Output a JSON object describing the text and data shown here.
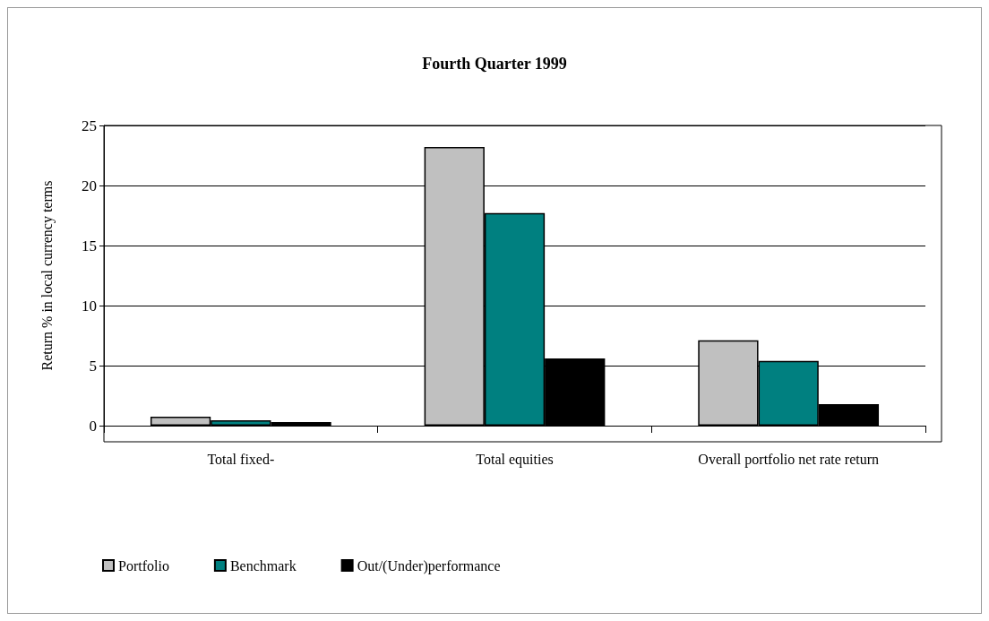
{
  "chart_data": {
    "type": "bar",
    "title": "Fourth Quarter 1999",
    "ylabel": "Return % in local currency terms",
    "categories": [
      "Total fixed-",
      "Total equities",
      "Overall portfolio net rate return"
    ],
    "series": [
      {
        "name": "Portfolio",
        "color": "#c0c0c0",
        "values": [
          0.75,
          23.2,
          7.1
        ]
      },
      {
        "name": "Benchmark",
        "color": "#008080",
        "values": [
          0.45,
          17.7,
          5.4
        ]
      },
      {
        "name": "Out/(Under)performance",
        "color": "#000000",
        "values": [
          0.3,
          5.6,
          1.8
        ]
      }
    ],
    "ylim": [
      0,
      25
    ],
    "yticks": [
      0,
      5,
      10,
      15,
      20,
      25
    ],
    "grid": "y",
    "legend": "bottom left"
  }
}
